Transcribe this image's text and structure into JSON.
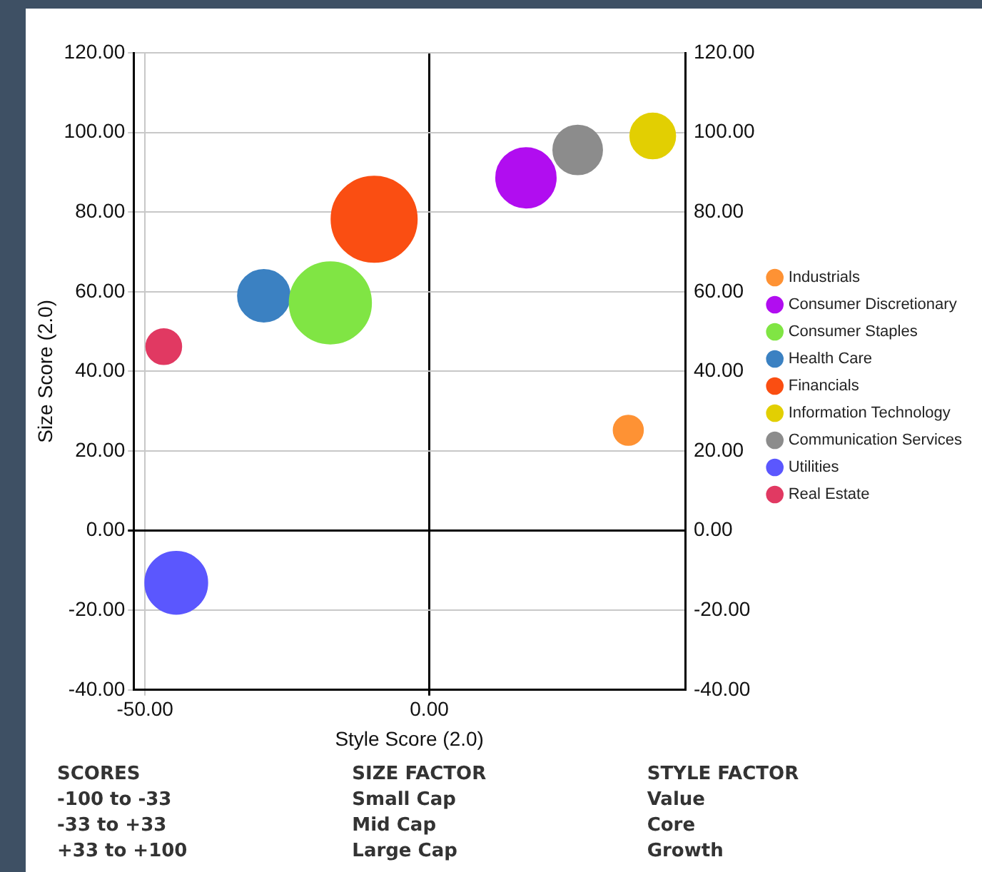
{
  "chart_data": {
    "type": "bubble",
    "xlabel": "Style Score (2.0)",
    "ylabel": "Size Score (2.0)",
    "xlim": [
      -52,
      45
    ],
    "xticks": [
      {
        "value": -50,
        "label": "-50.00"
      },
      {
        "value": 0,
        "label": "0.00"
      }
    ],
    "ylim": [
      -40,
      120
    ],
    "yticks": [
      {
        "value": -40,
        "label": "-40.00"
      },
      {
        "value": -20,
        "label": "-20.00"
      },
      {
        "value": 0,
        "label": "0.00"
      },
      {
        "value": 20,
        "label": "20.00"
      },
      {
        "value": 40,
        "label": "40.00"
      },
      {
        "value": 60,
        "label": "60.00"
      },
      {
        "value": 80,
        "label": "80.00"
      },
      {
        "value": 100,
        "label": "100.00"
      },
      {
        "value": 120,
        "label": "120.00"
      }
    ],
    "y2lim": [
      -40,
      120
    ],
    "y2ticks": [
      {
        "value": -40,
        "label": "-40.00"
      },
      {
        "value": -20,
        "label": "-20.00"
      },
      {
        "value": 0,
        "label": "0.00"
      },
      {
        "value": 20,
        "label": "20.00"
      },
      {
        "value": 40,
        "label": "40.00"
      },
      {
        "value": 60,
        "label": "60.00"
      },
      {
        "value": 80,
        "label": "80.00"
      },
      {
        "value": 100,
        "label": "100.00"
      },
      {
        "value": 120,
        "label": "120.00"
      }
    ],
    "grid": true,
    "legend": "right",
    "series": [
      {
        "name": "Industrials",
        "color": "#fe9234",
        "x": [
          35.0
        ],
        "values": [
          25.2
        ],
        "sizes": [
          0.12
        ]
      },
      {
        "name": "Consumer Discretionary",
        "color": "#b10df0",
        "x": [
          17.0
        ],
        "values": [
          88.6
        ],
        "sizes": [
          0.49
        ]
      },
      {
        "name": "Consumer Staples",
        "color": "#80e544",
        "x": [
          -17.4
        ],
        "values": [
          57.2
        ],
        "sizes": [
          0.91
        ]
      },
      {
        "name": "Health Care",
        "color": "#3b81c2",
        "x": [
          -29.1
        ],
        "values": [
          59.0
        ],
        "sizes": [
          0.37
        ]
      },
      {
        "name": "Financials",
        "color": "#fa4e12",
        "x": [
          -9.7
        ],
        "values": [
          78.2
        ],
        "sizes": [
          1
        ]
      },
      {
        "name": "Information Technology",
        "color": "#e2cf02",
        "x": [
          39.3
        ],
        "values": [
          99.1
        ],
        "sizes": [
          0.28
        ]
      },
      {
        "name": "Communication Services",
        "color": "#8c8c8c",
        "x": [
          26.1
        ],
        "values": [
          95.6
        ],
        "sizes": [
          0.33
        ]
      },
      {
        "name": "Utilities",
        "color": "#5b57fe",
        "x": [
          -44.5
        ],
        "values": [
          -13.1
        ],
        "sizes": [
          0.53
        ]
      },
      {
        "name": "Real Estate",
        "color": "#e13962",
        "x": [
          -46.7
        ],
        "values": [
          46.2
        ],
        "sizes": [
          0.17
        ]
      }
    ],
    "annotations": [
      "SCORES",
      "-100 to -33",
      "-33 to +33",
      "+33 to +100",
      "SIZE FACTOR",
      "Small Cap",
      "Mid Cap",
      "Large Cap",
      "STYLE FACTOR",
      "Value",
      "Core",
      "Growth"
    ]
  }
}
